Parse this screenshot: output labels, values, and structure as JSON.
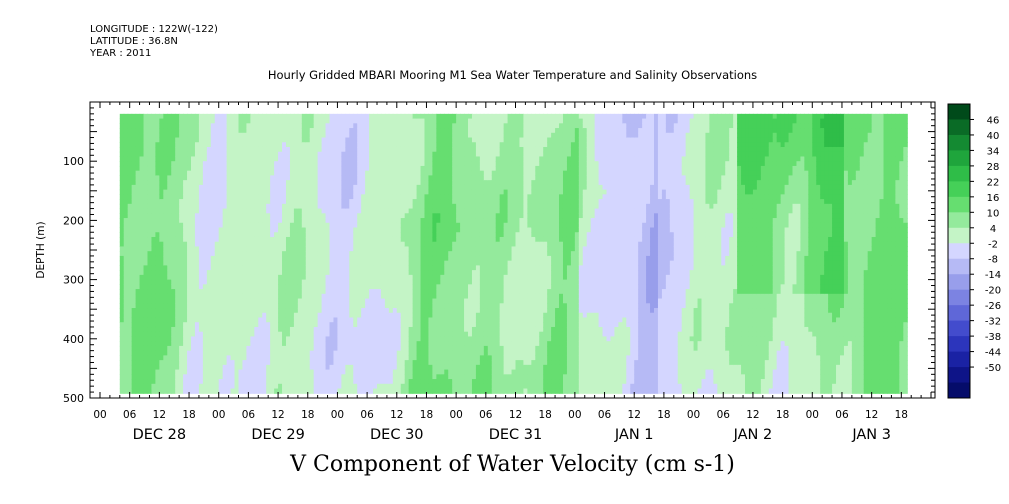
{
  "meta": {
    "longitude": "LONGITUDE : 122W(-122)",
    "latitude": "LATITUDE : 36.8N",
    "year": "YEAR : 2011"
  },
  "title": "Hourly Gridded MBARI Mooring M1 Sea Water Temperature and Salinity Observations",
  "footer_label": "V Component of Water Velocity (cm s-1)",
  "chart_data": {
    "type": "heatmap",
    "title": "Hourly Gridded MBARI Mooring M1 Sea Water Temperature and Salinity Observations",
    "xlabel": "",
    "ylabel": "DEPTH (m)",
    "colorbar_label": "V Component of Water Velocity (cm s-1)",
    "y_axis": {
      "min": 0,
      "max": 500,
      "inverted": true,
      "ticks": [
        100,
        200,
        300,
        400,
        500
      ]
    },
    "x_axis": {
      "start": "2011-12-28 00:00",
      "end": "2012-01-03 23:00",
      "hour_ticks": [
        "00",
        "06",
        "12",
        "18",
        "00",
        "06",
        "12",
        "18",
        "00",
        "06",
        "12",
        "18",
        "00",
        "06",
        "12",
        "18",
        "00",
        "06",
        "12",
        "18",
        "00",
        "06",
        "12",
        "18",
        "00",
        "06",
        "12",
        "18"
      ],
      "day_labels": [
        "DEC 28",
        "DEC 29",
        "DEC 30",
        "DEC 31",
        "JAN  1",
        "JAN  2",
        "JAN  3"
      ]
    },
    "data_extent": {
      "time_start_hour": 4,
      "time_end_hour": 163,
      "depth_top": 20,
      "depth_bottom": 490
    },
    "colorbar": {
      "levels": [
        "46",
        "40",
        "34",
        "28",
        "22",
        "16",
        "10",
        "4",
        "-2",
        "-8",
        "-14",
        "-20",
        "-26",
        "-32",
        "-38",
        "-44",
        "-50"
      ],
      "colors": [
        "#004a1a",
        "#0a6b26",
        "#148a32",
        "#1fa53c",
        "#2fbd48",
        "#45d058",
        "#66de70",
        "#94ea9c",
        "#c4f4c6",
        "#d4d6ff",
        "#b6baf5",
        "#989eeb",
        "#7c83e2",
        "#5f67d8",
        "#434ccd",
        "#2c35bc",
        "#1a22a4",
        "#0e1488",
        "#050c6a"
      ]
    },
    "grid": false
  },
  "colors": {
    "positive": "#5fe06a",
    "negative": "#9ca2ee",
    "background": "#ffffff"
  }
}
